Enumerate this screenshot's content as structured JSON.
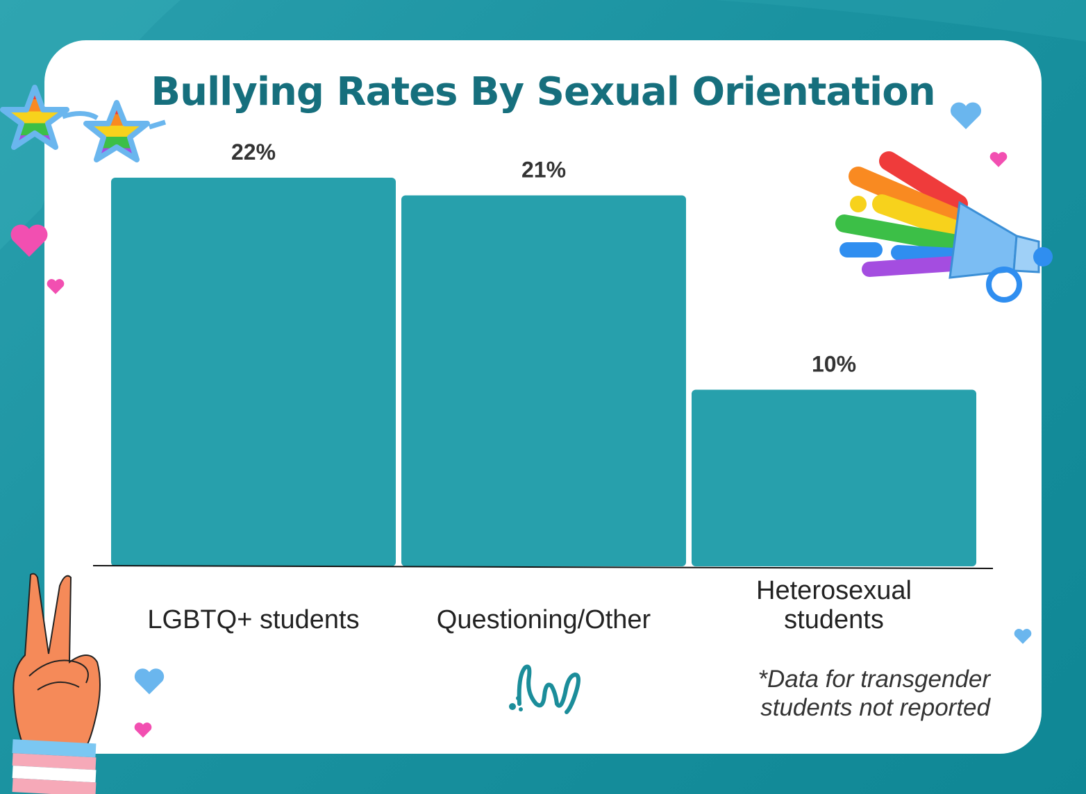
{
  "title": "Bullying Rates By Sexual Orientation",
  "footnote": "*Data for transgender\nstudents not reported",
  "colors": {
    "bar": "#27a0ac",
    "title": "#166f7d",
    "background": "#1a92a0",
    "card": "#ffffff"
  },
  "icons": [
    "star-sunglasses-icon",
    "heart-icon",
    "megaphone-icon",
    "peace-hand-icon",
    "logo-squiggle-icon"
  ],
  "chart_data": {
    "type": "bar",
    "title": "Bullying Rates By Sexual Orientation",
    "categories": [
      "LGBTQ+ students",
      "Questioning/Other",
      "Heterosexual\nstudents"
    ],
    "values": [
      22,
      21,
      10
    ],
    "value_labels": [
      "22%",
      "21%",
      "10%"
    ],
    "unit": "%",
    "ylim": [
      0,
      22
    ],
    "grid": false,
    "legend": "none"
  }
}
